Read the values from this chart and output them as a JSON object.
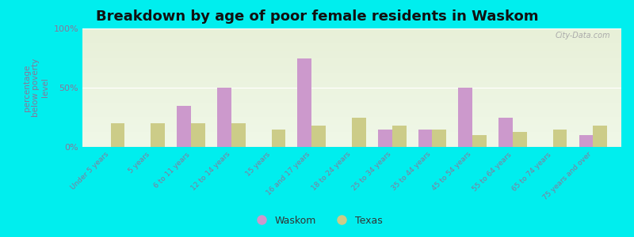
{
  "title": "Breakdown by age of poor female residents in Waskom",
  "ylabel": "percentage\nbelow poverty\nlevel",
  "categories": [
    "Under 5 years",
    "5 years",
    "6 to 11 years",
    "12 to 14 years",
    "15 years",
    "16 and 17 years",
    "18 to 24 years",
    "25 to 34 years",
    "35 to 44 years",
    "45 to 54 years",
    "55 to 64 years",
    "65 to 74 years",
    "75 years and over"
  ],
  "waskom_values": [
    0,
    0,
    35,
    50,
    0,
    75,
    0,
    15,
    15,
    50,
    25,
    0,
    10
  ],
  "texas_values": [
    20,
    20,
    20,
    20,
    15,
    18,
    25,
    18,
    15,
    10,
    13,
    15,
    18
  ],
  "waskom_color": "#cc99cc",
  "texas_color": "#cccc88",
  "background_color": "#00eeee",
  "ylim": [
    0,
    100
  ],
  "yticks": [
    0,
    50,
    100
  ],
  "ytick_labels": [
    "0%",
    "50%",
    "100%"
  ],
  "title_fontsize": 13,
  "legend_labels": [
    "Waskom",
    "Texas"
  ],
  "bar_width": 0.35,
  "tick_label_color": "#887799",
  "ylabel_color": "#887799",
  "watermark": "City-Data.com"
}
